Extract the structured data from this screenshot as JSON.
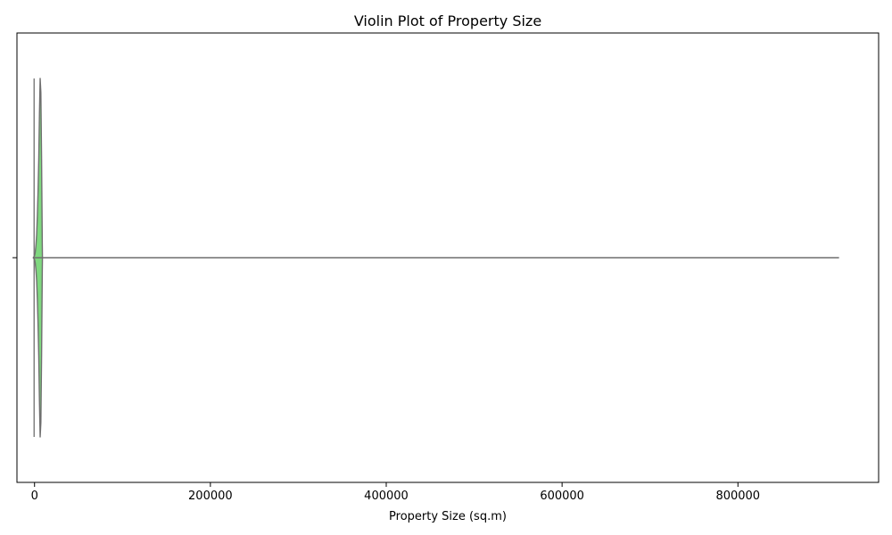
{
  "chart_data": {
    "type": "violin",
    "title": "Violin Plot of Property Size",
    "xlabel": "Property Size (sq.m)",
    "ylabel": "",
    "orientation": "horizontal",
    "xlim": [
      -20000,
      960000
    ],
    "xticks": [
      0,
      200000,
      400000,
      600000,
      800000
    ],
    "xtick_labels": [
      "0",
      "200000",
      "400000",
      "600000",
      "800000"
    ],
    "grid": false,
    "legend": "none",
    "colors": {
      "violin_fill": "#7fd87f",
      "violin_edge": "#6f6f6f",
      "axes_edge": "#000000",
      "inner_line": "#6f6f6f"
    },
    "series": [
      {
        "density_profile": {
          "x": [
            -1500,
            0,
            800,
            1600,
            2400,
            3200,
            4000,
            4800,
            5600,
            6400,
            7200,
            8000,
            8800,
            9000
          ],
          "half_width": [
            0,
            0.01,
            0.03,
            0.07,
            0.13,
            0.23,
            0.37,
            0.55,
            0.8,
            1.0,
            0.92,
            0.55,
            0.08,
            0
          ]
        },
        "whisker_range": [
          0,
          915000
        ],
        "min_marker": -1500
      }
    ]
  }
}
